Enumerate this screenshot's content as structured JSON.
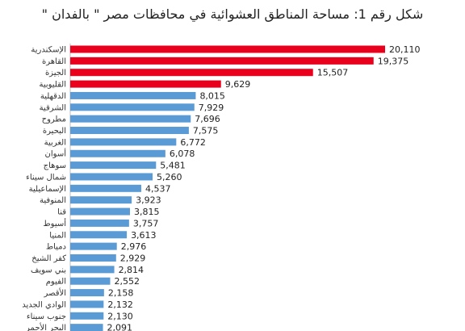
{
  "chart_data": {
    "type": "bar",
    "orientation": "horizontal",
    "title": "شكل رقم 1: مساحة المناطق العشوائية في محافظات مصر \" بالفدان \"",
    "categories": [
      "الإسكندرية",
      "القاهرة",
      "الجيزة",
      "القليوبية",
      "الدقهلية",
      "الشرقية",
      "مطروح",
      "البحيرة",
      "الغربية",
      "أسوان",
      "سوهاج",
      "شمال سيناء",
      "الإسماعيلية",
      "المنوفية",
      "قنا",
      "أسيوط",
      "المنيا",
      "دمياط",
      "كفر الشيخ",
      "بني سويف",
      "الفيوم",
      "الأقصر",
      "الوادي الجديد",
      "جنوب سيناء",
      "البحر الأحمر"
    ],
    "values": [
      20110,
      19375,
      15507,
      9629,
      8015,
      7929,
      7696,
      7575,
      6772,
      6078,
      5481,
      5260,
      4537,
      3923,
      3815,
      3757,
      3613,
      2976,
      2929,
      2814,
      2552,
      2158,
      2132,
      2130,
      2091
    ],
    "value_labels": [
      "20,110",
      "19,375",
      "15,507",
      "9,629",
      "8,015",
      "7,929",
      "7,696",
      "7,575",
      "6,772",
      "6,078",
      "5,481",
      "5,260",
      "4,537",
      "3,923",
      "3,815",
      "3,757",
      "3,613",
      "2,976",
      "2,929",
      "2,814",
      "2,552",
      "2,158",
      "2,132",
      "2,130",
      "2,091"
    ],
    "highlight_count": 4,
    "colors": {
      "highlight": "#e8001c",
      "default": "#5b9bd5"
    },
    "xlim": [
      0,
      20110
    ],
    "grid": false,
    "legend": "none"
  }
}
